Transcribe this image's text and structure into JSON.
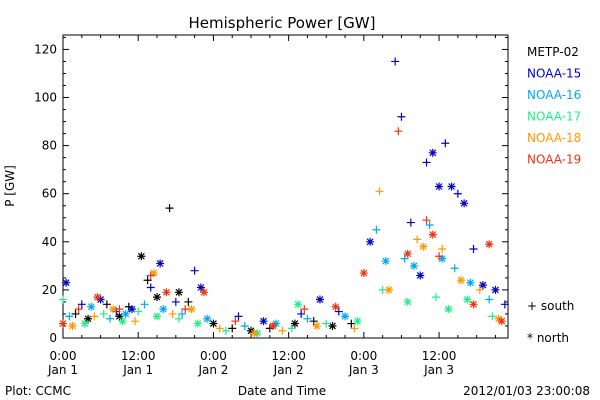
{
  "chart_data": {
    "type": "scatter",
    "title": "Hemispheric Power [GW]",
    "ylabel": "P [GW]",
    "xlabel": "Date and Time",
    "xlim": [
      "2012-01-01T00:00",
      "2012-01-03T23:00"
    ],
    "ylim": [
      0,
      126
    ],
    "y_ticks": [
      0,
      20,
      40,
      60,
      80,
      100,
      120
    ],
    "x_ticks": [
      {
        "time": "2012-01-01T00:00",
        "line1": "0:00",
        "line2": "Jan 1"
      },
      {
        "time": "2012-01-01T12:00",
        "line1": "12:00",
        "line2": "Jan 1"
      },
      {
        "time": "2012-01-02T00:00",
        "line1": "0:00",
        "line2": "Jan 2"
      },
      {
        "time": "2012-01-02T12:00",
        "line1": "12:00",
        "line2": "Jan 2"
      },
      {
        "time": "2012-01-03T00:00",
        "line1": "0:00",
        "line2": "Jan 3"
      },
      {
        "time": "2012-01-03T12:00",
        "line1": "12:00",
        "line2": "Jan 3"
      }
    ],
    "legend_placement": "right",
    "marker_legend": [
      {
        "symbol": "+",
        "label": "south"
      },
      {
        "symbol": "*",
        "label": "north"
      }
    ],
    "series": [
      {
        "name": "METP-02",
        "color": "#000000",
        "points": [
          {
            "x": "2012-01-01T02:00",
            "y": 10,
            "m": "+"
          },
          {
            "x": "2012-01-01T04:00",
            "y": 8,
            "m": "*"
          },
          {
            "x": "2012-01-01T07:00",
            "y": 14,
            "m": "+"
          },
          {
            "x": "2012-01-01T09:00",
            "y": 9,
            "m": "*"
          },
          {
            "x": "2012-01-01T10:30",
            "y": 13,
            "m": "+"
          },
          {
            "x": "2012-01-01T12:30",
            "y": 34,
            "m": "*"
          },
          {
            "x": "2012-01-01T13:30",
            "y": 24,
            "m": "+"
          },
          {
            "x": "2012-01-01T15:00",
            "y": 17,
            "m": "*"
          },
          {
            "x": "2012-01-01T17:00",
            "y": 54,
            "m": "+"
          },
          {
            "x": "2012-01-01T18:30",
            "y": 19,
            "m": "*"
          },
          {
            "x": "2012-01-01T20:00",
            "y": 15,
            "m": "+"
          },
          {
            "x": "2012-01-02T00:00",
            "y": 6,
            "m": "*"
          },
          {
            "x": "2012-01-02T03:00",
            "y": 4,
            "m": "+"
          },
          {
            "x": "2012-01-02T06:00",
            "y": 3,
            "m": "*"
          },
          {
            "x": "2012-01-02T09:00",
            "y": 4,
            "m": "+"
          },
          {
            "x": "2012-01-02T13:00",
            "y": 6,
            "m": "*"
          },
          {
            "x": "2012-01-02T16:00",
            "y": 7,
            "m": "+"
          },
          {
            "x": "2012-01-02T19:00",
            "y": 5,
            "m": "*"
          },
          {
            "x": "2012-01-02T22:00",
            "y": 6,
            "m": "+"
          }
        ]
      },
      {
        "name": "NOAA-15",
        "color": "#0000c8",
        "points": [
          {
            "x": "2012-01-01T00:30",
            "y": 23,
            "m": "*"
          },
          {
            "x": "2012-01-01T03:00",
            "y": 14,
            "m": "+"
          },
          {
            "x": "2012-01-01T06:00",
            "y": 16,
            "m": "*"
          },
          {
            "x": "2012-01-01T08:30",
            "y": 11,
            "m": "+"
          },
          {
            "x": "2012-01-01T11:00",
            "y": 12,
            "m": "*"
          },
          {
            "x": "2012-01-01T14:00",
            "y": 21,
            "m": "+"
          },
          {
            "x": "2012-01-01T15:30",
            "y": 31,
            "m": "*"
          },
          {
            "x": "2012-01-01T18:00",
            "y": 15,
            "m": "+"
          },
          {
            "x": "2012-01-01T21:00",
            "y": 28,
            "m": "+"
          },
          {
            "x": "2012-01-01T22:00",
            "y": 21,
            "m": "*"
          },
          {
            "x": "2012-01-02T04:00",
            "y": 9,
            "m": "+"
          },
          {
            "x": "2012-01-02T08:00",
            "y": 7,
            "m": "*"
          },
          {
            "x": "2012-01-02T14:00",
            "y": 10,
            "m": "+"
          },
          {
            "x": "2012-01-02T17:00",
            "y": 16,
            "m": "*"
          },
          {
            "x": "2012-01-02T20:00",
            "y": 11,
            "m": "+"
          },
          {
            "x": "2012-01-03T01:00",
            "y": 40,
            "m": "*"
          },
          {
            "x": "2012-01-03T05:00",
            "y": 115,
            "m": "+"
          },
          {
            "x": "2012-01-03T06:00",
            "y": 92,
            "m": "+"
          },
          {
            "x": "2012-01-03T07:30",
            "y": 48,
            "m": "+"
          },
          {
            "x": "2012-01-03T09:00",
            "y": 26,
            "m": "*"
          },
          {
            "x": "2012-01-03T10:00",
            "y": 73,
            "m": "+"
          },
          {
            "x": "2012-01-03T11:00",
            "y": 77,
            "m": "*"
          },
          {
            "x": "2012-01-03T12:00",
            "y": 63,
            "m": "*"
          },
          {
            "x": "2012-01-03T13:00",
            "y": 81,
            "m": "+"
          },
          {
            "x": "2012-01-03T14:00",
            "y": 63,
            "m": "*"
          },
          {
            "x": "2012-01-03T15:00",
            "y": 60,
            "m": "+"
          },
          {
            "x": "2012-01-03T16:00",
            "y": 56,
            "m": "*"
          },
          {
            "x": "2012-01-03T17:30",
            "y": 37,
            "m": "+"
          },
          {
            "x": "2012-01-03T19:00",
            "y": 22,
            "m": "*"
          },
          {
            "x": "2012-01-03T21:00",
            "y": 20,
            "m": "*"
          },
          {
            "x": "2012-01-03T22:30",
            "y": 14,
            "m": "+"
          }
        ]
      },
      {
        "name": "NOAA-16",
        "color": "#00aaee",
        "points": [
          {
            "x": "2012-01-01T01:00",
            "y": 9,
            "m": "+"
          },
          {
            "x": "2012-01-01T04:30",
            "y": 13,
            "m": "*"
          },
          {
            "x": "2012-01-01T07:30",
            "y": 8,
            "m": "+"
          },
          {
            "x": "2012-01-01T10:00",
            "y": 10,
            "m": "*"
          },
          {
            "x": "2012-01-01T13:00",
            "y": 14,
            "m": "+"
          },
          {
            "x": "2012-01-01T16:00",
            "y": 12,
            "m": "*"
          },
          {
            "x": "2012-01-01T19:00",
            "y": 10,
            "m": "+"
          },
          {
            "x": "2012-01-01T23:00",
            "y": 8,
            "m": "*"
          },
          {
            "x": "2012-01-02T05:00",
            "y": 5,
            "m": "+"
          },
          {
            "x": "2012-01-02T10:00",
            "y": 6,
            "m": "*"
          },
          {
            "x": "2012-01-02T15:00",
            "y": 8,
            "m": "+"
          },
          {
            "x": "2012-01-02T21:00",
            "y": 9,
            "m": "*"
          },
          {
            "x": "2012-01-03T02:00",
            "y": 45,
            "m": "+"
          },
          {
            "x": "2012-01-03T03:30",
            "y": 32,
            "m": "*"
          },
          {
            "x": "2012-01-03T06:30",
            "y": 33,
            "m": "+"
          },
          {
            "x": "2012-01-03T08:00",
            "y": 30,
            "m": "*"
          },
          {
            "x": "2012-01-03T10:30",
            "y": 47,
            "m": "+"
          },
          {
            "x": "2012-01-03T12:30",
            "y": 33,
            "m": "*"
          },
          {
            "x": "2012-01-03T14:30",
            "y": 29,
            "m": "+"
          },
          {
            "x": "2012-01-03T17:00",
            "y": 23,
            "m": "*"
          },
          {
            "x": "2012-01-03T20:00",
            "y": 16,
            "m": "+"
          }
        ]
      },
      {
        "name": "NOAA-17",
        "color": "#22ee88",
        "points": [
          {
            "x": "2012-01-01T00:00",
            "y": 16,
            "m": "+"
          },
          {
            "x": "2012-01-01T03:30",
            "y": 6,
            "m": "*"
          },
          {
            "x": "2012-01-01T06:30",
            "y": 10,
            "m": "+"
          },
          {
            "x": "2012-01-01T09:30",
            "y": 7,
            "m": "*"
          },
          {
            "x": "2012-01-01T12:00",
            "y": 11,
            "m": "+"
          },
          {
            "x": "2012-01-01T15:00",
            "y": 9,
            "m": "*"
          },
          {
            "x": "2012-01-01T18:30",
            "y": 8,
            "m": "+"
          },
          {
            "x": "2012-01-01T21:30",
            "y": 6,
            "m": "*"
          },
          {
            "x": "2012-01-02T02:00",
            "y": 3,
            "m": "+"
          },
          {
            "x": "2012-01-02T07:00",
            "y": 2,
            "m": "*"
          },
          {
            "x": "2012-01-02T12:30",
            "y": 4,
            "m": "+"
          },
          {
            "x": "2012-01-02T13:30",
            "y": 14,
            "m": "*"
          },
          {
            "x": "2012-01-02T18:00",
            "y": 6,
            "m": "+"
          },
          {
            "x": "2012-01-02T23:00",
            "y": 7,
            "m": "*"
          },
          {
            "x": "2012-01-03T03:00",
            "y": 20,
            "m": "+"
          },
          {
            "x": "2012-01-03T07:00",
            "y": 15,
            "m": "*"
          },
          {
            "x": "2012-01-03T11:30",
            "y": 17,
            "m": "+"
          },
          {
            "x": "2012-01-03T13:30",
            "y": 12,
            "m": "*"
          },
          {
            "x": "2012-01-03T16:30",
            "y": 16,
            "m": "*"
          },
          {
            "x": "2012-01-03T20:30",
            "y": 9,
            "m": "+"
          }
        ]
      },
      {
        "name": "NOAA-18",
        "color": "#ff9900",
        "points": [
          {
            "x": "2012-01-01T01:30",
            "y": 5,
            "m": "*"
          },
          {
            "x": "2012-01-01T05:00",
            "y": 9,
            "m": "+"
          },
          {
            "x": "2012-01-01T08:00",
            "y": 12,
            "m": "*"
          },
          {
            "x": "2012-01-01T11:30",
            "y": 7,
            "m": "+"
          },
          {
            "x": "2012-01-01T14:30",
            "y": 27,
            "m": "*"
          },
          {
            "x": "2012-01-01T17:30",
            "y": 10,
            "m": "+"
          },
          {
            "x": "2012-01-01T20:30",
            "y": 12,
            "m": "*"
          },
          {
            "x": "2012-01-02T01:00",
            "y": 4,
            "m": "+"
          },
          {
            "x": "2012-01-02T06:30",
            "y": 2,
            "m": "*"
          },
          {
            "x": "2012-01-02T11:00",
            "y": 3,
            "m": "+"
          },
          {
            "x": "2012-01-02T16:30",
            "y": 5,
            "m": "*"
          },
          {
            "x": "2012-01-02T22:30",
            "y": 4,
            "m": "+"
          },
          {
            "x": "2012-01-03T02:30",
            "y": 61,
            "m": "+"
          },
          {
            "x": "2012-01-03T04:00",
            "y": 20,
            "m": "*"
          },
          {
            "x": "2012-01-03T08:30",
            "y": 41,
            "m": "+"
          },
          {
            "x": "2012-01-03T09:30",
            "y": 38,
            "m": "*"
          },
          {
            "x": "2012-01-03T12:30",
            "y": 37,
            "m": "+"
          },
          {
            "x": "2012-01-03T15:30",
            "y": 24,
            "m": "*"
          },
          {
            "x": "2012-01-03T18:30",
            "y": 20,
            "m": "+"
          },
          {
            "x": "2012-01-03T21:30",
            "y": 8,
            "m": "*"
          }
        ]
      },
      {
        "name": "NOAA-19",
        "color": "#ee3311",
        "points": [
          {
            "x": "2012-01-01T00:00",
            "y": 6,
            "m": "*"
          },
          {
            "x": "2012-01-01T02:30",
            "y": 12,
            "m": "+"
          },
          {
            "x": "2012-01-01T05:30",
            "y": 17,
            "m": "*"
          },
          {
            "x": "2012-01-01T09:00",
            "y": 12,
            "m": "+"
          },
          {
            "x": "2012-01-01T14:00",
            "y": 26,
            "m": "+"
          },
          {
            "x": "2012-01-01T16:30",
            "y": 19,
            "m": "*"
          },
          {
            "x": "2012-01-01T19:30",
            "y": 12,
            "m": "+"
          },
          {
            "x": "2012-01-01T22:30",
            "y": 19,
            "m": "*"
          },
          {
            "x": "2012-01-02T03:30",
            "y": 7,
            "m": "+"
          },
          {
            "x": "2012-01-02T09:30",
            "y": 5,
            "m": "*"
          },
          {
            "x": "2012-01-02T14:30",
            "y": 12,
            "m": "+"
          },
          {
            "x": "2012-01-02T19:30",
            "y": 13,
            "m": "*"
          },
          {
            "x": "2012-01-03T00:00",
            "y": 27,
            "m": "*"
          },
          {
            "x": "2012-01-03T05:30",
            "y": 86,
            "m": "+"
          },
          {
            "x": "2012-01-03T07:00",
            "y": 35,
            "m": "*"
          },
          {
            "x": "2012-01-03T10:00",
            "y": 49,
            "m": "+"
          },
          {
            "x": "2012-01-03T11:00",
            "y": 43,
            "m": "*"
          },
          {
            "x": "2012-01-03T12:00",
            "y": 34,
            "m": "+"
          },
          {
            "x": "2012-01-03T17:30",
            "y": 14,
            "m": "*"
          },
          {
            "x": "2012-01-03T20:00",
            "y": 39,
            "m": "*"
          },
          {
            "x": "2012-01-03T22:00",
            "y": 7,
            "m": "*"
          }
        ]
      }
    ]
  },
  "footer": {
    "left": "Plot: CCMC",
    "right": "2012/01/03 23:00:08"
  }
}
